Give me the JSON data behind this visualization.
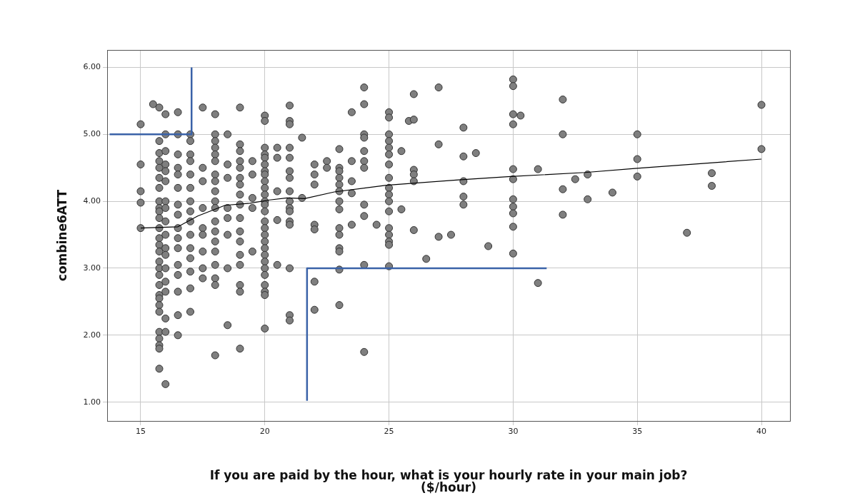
{
  "chart_data": {
    "type": "scatter",
    "xlabel": "If you are paid by the hour, what is your hourly rate in your main job?\n($/hour)",
    "ylabel": "combine6ATT",
    "xlim": [
      13.65,
      41.15
    ],
    "xticks": [
      15,
      20,
      25,
      30,
      35,
      40
    ],
    "ylim": [
      0.72,
      6.26
    ],
    "yticks": [
      {
        "value": 1,
        "label": "1.00"
      },
      {
        "value": 2,
        "label": "2.00"
      },
      {
        "value": 3,
        "label": "3.00"
      },
      {
        "value": 4,
        "label": "4.00"
      },
      {
        "value": 5,
        "label": "5.00"
      },
      {
        "value": 6,
        "label": "6.00"
      }
    ],
    "grid": true,
    "legend": false,
    "marker": "circle",
    "series": [
      {
        "type": "scatter",
        "color": "#7f7f7f",
        "x": [
          15,
          15,
          15,
          15,
          15,
          15.5,
          15.75,
          15.75,
          15.75,
          15.75,
          15.75,
          15.75,
          15.75,
          15.75,
          15.75,
          15.75,
          15.75,
          15.75,
          15.75,
          15.75,
          15.75,
          15.75,
          15.75,
          15.75,
          15.75,
          15.75,
          15.75,
          15.75,
          15.75,
          15.75,
          15.75,
          15.75,
          15.75,
          15.75,
          16,
          16,
          16,
          16,
          16,
          16,
          16,
          16,
          16,
          16,
          16,
          16,
          16,
          16,
          16,
          16,
          16,
          16,
          16.5,
          16.5,
          16.5,
          16.5,
          16.5,
          16.5,
          16.5,
          16.5,
          16.5,
          16.5,
          16.5,
          16.5,
          16.5,
          16.5,
          16.5,
          16.5,
          17,
          17,
          17,
          17,
          17,
          17,
          17,
          17,
          17,
          17,
          17,
          17,
          17,
          17,
          17,
          17.5,
          17.5,
          17.5,
          17.5,
          17.5,
          17.5,
          17.5,
          17.5,
          17.5,
          18,
          18,
          18,
          18,
          18,
          18,
          18,
          18,
          18,
          18,
          18,
          18,
          18,
          18,
          18,
          18,
          18,
          18,
          18,
          18.5,
          18.5,
          18.5,
          18.5,
          18.5,
          18.5,
          18.5,
          18.5,
          19,
          19,
          19,
          19,
          19,
          19,
          19,
          19,
          19,
          19,
          19,
          19,
          19,
          19,
          19,
          19,
          19,
          19.5,
          19.5,
          19.5,
          19.5,
          19.5,
          20,
          20,
          20,
          20,
          20,
          20,
          20,
          20,
          20,
          20,
          20,
          20,
          20,
          20,
          20,
          20,
          20,
          20,
          20,
          20,
          20,
          20,
          20,
          20,
          20,
          20,
          20,
          20.5,
          20.5,
          20.5,
          20.5,
          20.5,
          21,
          21,
          21,
          21,
          21,
          21,
          21,
          21,
          21,
          21,
          21,
          21,
          21,
          21,
          21,
          21,
          21.5,
          21.5,
          22,
          22,
          22,
          22,
          22,
          22,
          22,
          22.5,
          22.5,
          23,
          23,
          23,
          23,
          23,
          23,
          23,
          23,
          23,
          23,
          23,
          23,
          23,
          23,
          23.5,
          23.5,
          23.5,
          23.5,
          23.5,
          24,
          24,
          24,
          24,
          24,
          24,
          24,
          24,
          24,
          24,
          24,
          24.5,
          25,
          25,
          25,
          25,
          25,
          25,
          25,
          25,
          25,
          25,
          25,
          25,
          25,
          25,
          25,
          25,
          25,
          25.5,
          25.5,
          25.8,
          26,
          26,
          26,
          26,
          26,
          26,
          26.5,
          27,
          27,
          27,
          27.5,
          28,
          28,
          28,
          28,
          28,
          28.5,
          29,
          30,
          30,
          30,
          30,
          30,
          30,
          30,
          30,
          30,
          30,
          30,
          30.3,
          31,
          31,
          32,
          32,
          32,
          32,
          32.5,
          33,
          33,
          34,
          35,
          35,
          35,
          37,
          38,
          38,
          40,
          40
        ],
        "values": [
          5.15,
          4.55,
          4.15,
          3.98,
          3.6,
          5.45,
          5.4,
          4.9,
          4.72,
          4.6,
          4.5,
          4.35,
          4.2,
          4.0,
          3.9,
          3.85,
          3.75,
          3.6,
          3.45,
          3.35,
          3.25,
          3.1,
          3.0,
          2.9,
          2.75,
          2.6,
          2.55,
          2.45,
          2.35,
          2.05,
          1.95,
          1.85,
          1.8,
          1.5,
          5.3,
          5.0,
          4.75,
          4.55,
          4.45,
          4.3,
          4.0,
          3.9,
          3.7,
          3.5,
          3.3,
          3.2,
          3.0,
          2.8,
          2.65,
          2.25,
          2.05,
          1.27,
          5.33,
          5.0,
          4.7,
          4.5,
          4.4,
          4.2,
          3.95,
          3.8,
          3.6,
          3.45,
          3.3,
          3.05,
          2.9,
          2.65,
          2.3,
          2.0,
          5.0,
          4.9,
          4.7,
          4.6,
          4.4,
          4.2,
          4.0,
          3.85,
          3.7,
          3.5,
          3.3,
          3.15,
          2.95,
          2.7,
          2.35,
          5.4,
          4.5,
          4.3,
          3.9,
          3.6,
          3.5,
          3.25,
          3.0,
          2.85,
          5.3,
          5.0,
          4.9,
          4.8,
          4.7,
          4.6,
          4.4,
          4.3,
          4.15,
          4.0,
          3.9,
          3.7,
          3.55,
          3.4,
          3.25,
          3.05,
          2.85,
          2.75,
          1.7,
          5.0,
          4.55,
          4.35,
          3.9,
          3.75,
          3.5,
          3.0,
          2.15,
          5.4,
          4.85,
          4.75,
          4.6,
          4.5,
          4.35,
          4.25,
          4.1,
          3.95,
          3.75,
          3.55,
          3.4,
          3.2,
          3.05,
          2.75,
          2.65,
          1.8,
          4.6,
          4.4,
          4.05,
          3.9,
          3.25,
          5.28,
          5.2,
          4.8,
          4.7,
          4.65,
          4.55,
          4.45,
          4.4,
          4.3,
          4.2,
          4.1,
          4.0,
          3.95,
          3.85,
          3.7,
          3.6,
          3.5,
          3.4,
          3.3,
          3.2,
          3.1,
          3.0,
          2.9,
          2.75,
          2.65,
          2.6,
          2.1,
          4.8,
          4.65,
          4.15,
          3.72,
          3.05,
          5.43,
          5.2,
          5.15,
          4.8,
          4.65,
          4.45,
          4.35,
          4.15,
          4.0,
          3.9,
          3.85,
          3.7,
          3.65,
          3.0,
          2.3,
          2.22,
          4.95,
          4.05,
          4.55,
          4.4,
          4.25,
          3.65,
          3.58,
          2.8,
          2.38,
          4.6,
          4.5,
          4.78,
          4.5,
          4.45,
          4.35,
          4.25,
          4.15,
          4.0,
          3.88,
          3.6,
          3.5,
          3.3,
          3.25,
          2.98,
          2.45,
          5.33,
          4.6,
          4.3,
          4.12,
          3.65,
          5.7,
          5.45,
          5.0,
          4.95,
          4.75,
          4.6,
          4.5,
          3.95,
          3.78,
          3.05,
          1.75,
          3.65,
          5.33,
          5.25,
          5.0,
          4.9,
          4.8,
          4.7,
          4.55,
          4.35,
          4.2,
          4.1,
          4.0,
          3.85,
          3.6,
          3.5,
          3.4,
          3.35,
          3.03,
          4.75,
          3.88,
          5.2,
          5.6,
          5.22,
          4.47,
          4.4,
          4.3,
          3.57,
          3.14,
          5.7,
          4.85,
          3.47,
          3.5,
          5.1,
          4.67,
          4.3,
          4.07,
          3.95,
          4.72,
          3.33,
          5.82,
          5.72,
          5.3,
          5.15,
          4.48,
          4.33,
          4.03,
          3.92,
          3.82,
          3.62,
          3.22,
          5.28,
          4.48,
          2.78,
          5.52,
          5.0,
          4.18,
          3.8,
          4.33,
          4.4,
          4.03,
          4.13,
          5.0,
          4.63,
          4.37,
          3.53,
          4.42,
          4.23,
          5.44,
          4.78
        ]
      },
      {
        "type": "line",
        "color": "#000000",
        "marker": "none",
        "x": [
          15,
          16.5,
          17.3,
          18.4,
          19.4,
          20.2,
          20.9,
          21.6,
          22.8,
          24.9,
          27.8,
          29.9,
          32.9,
          34.9,
          40
        ],
        "values": [
          3.6,
          3.62,
          3.78,
          3.94,
          3.97,
          4.02,
          4.05,
          4.04,
          4.14,
          4.24,
          4.32,
          4.37,
          4.43,
          4.49,
          4.63
        ]
      },
      {
        "type": "line",
        "color": "#3a62a8",
        "marker": "none",
        "x": [
          13.75,
          17.05,
          17.05
        ],
        "values": [
          5,
          5,
          6
        ]
      },
      {
        "type": "line",
        "color": "#3a62a8",
        "marker": "none",
        "x": [
          21.7,
          21.7,
          31.35
        ],
        "values": [
          1.02,
          3,
          3
        ]
      }
    ]
  }
}
